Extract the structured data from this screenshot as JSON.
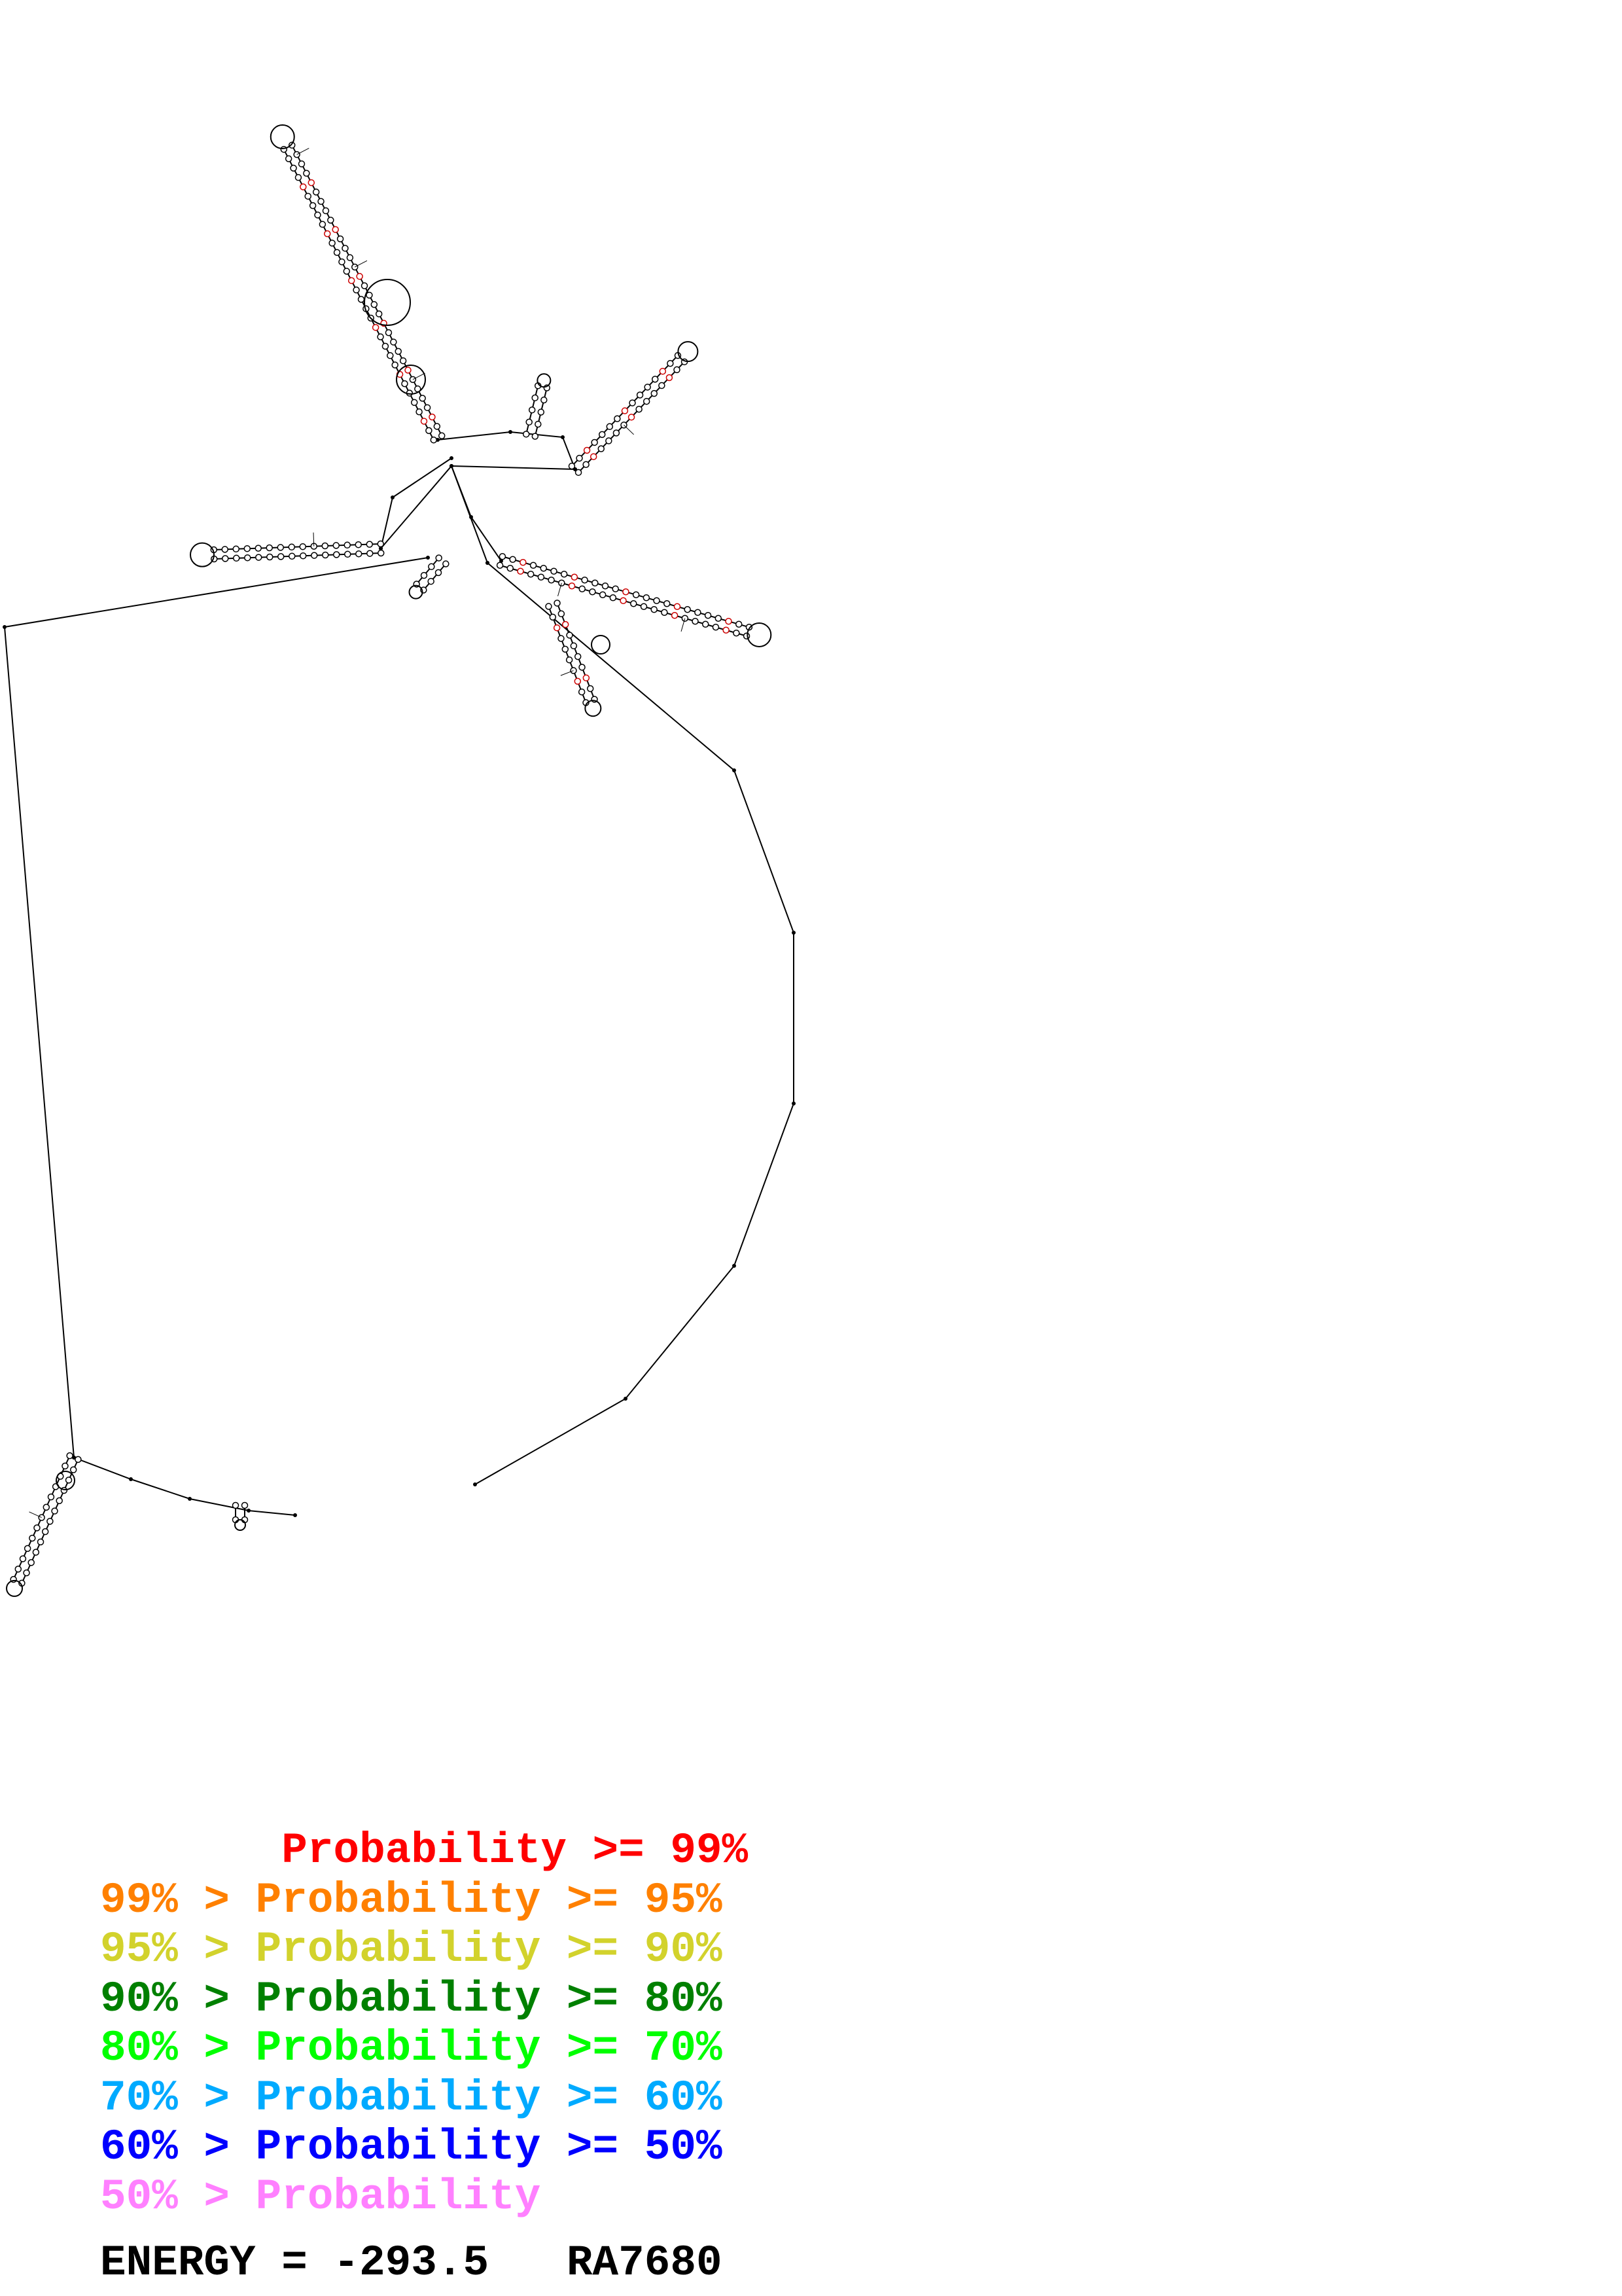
{
  "legend": [
    {
      "prefix": "       ",
      "label": "Probability",
      "suffix": " >= 99%",
      "color": "#ff0000"
    },
    {
      "prefix": "99% > ",
      "label": "Probability",
      "suffix": " >= 95%",
      "color": "#ff8000"
    },
    {
      "prefix": "95% > ",
      "label": "Probability",
      "suffix": " >= 90%",
      "color": "#d2d22c"
    },
    {
      "prefix": "90% > ",
      "label": "Probability",
      "suffix": " >= 80%",
      "color": "#008000"
    },
    {
      "prefix": "80% > ",
      "label": "Probability",
      "suffix": " >= 70%",
      "color": "#00ff00"
    },
    {
      "prefix": "70% > ",
      "label": "Probability",
      "suffix": " >= 60%",
      "color": "#00aaff"
    },
    {
      "prefix": "60% > ",
      "label": "Probability",
      "suffix": " >= 50%",
      "color": "#0000ff"
    },
    {
      "prefix": "50% > ",
      "label": "Probability",
      "suffix": "",
      "color": "#ff80ff"
    }
  ],
  "footer": {
    "energy_label": "ENERGY = -293.5",
    "sequence_id": "RA7680"
  },
  "structure": {
    "line_color": "#000000",
    "pair_colors": [
      "#ff0000",
      "#008000",
      "#000000"
    ]
  }
}
